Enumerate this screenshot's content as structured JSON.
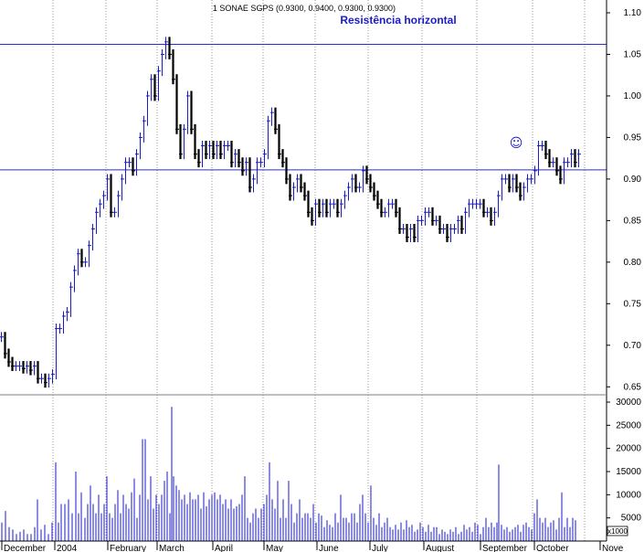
{
  "chart_data": {
    "type": "bar",
    "title": "1 SONAE SGPS (0.9300, 0.9400, 0.9300, 0.9300)",
    "annotation": "Resistência horizontal",
    "annotation_symbol": "☺",
    "price_axis": {
      "ticks": [
        "1.10",
        "1.05",
        "1.00",
        "0.95",
        "0.90",
        "0.85",
        "0.80",
        "0.75",
        "0.70",
        "0.65"
      ],
      "ylim": [
        0.625,
        1.1
      ]
    },
    "volume_axis": {
      "ticks": [
        "30000",
        "25000",
        "20000",
        "15000",
        "10000",
        "5000"
      ],
      "ylim": [
        0,
        30000
      ],
      "unit_label": "x1000"
    },
    "x_labels": [
      "December",
      "2004",
      "February",
      "March",
      "April",
      "May",
      "June",
      "July",
      "August",
      "September",
      "October",
      "Nove"
    ],
    "horizontal_lines": [
      1.062,
      0.911
    ],
    "colors": {
      "up": "#1a1ac8",
      "down": "#000000",
      "hline": "#2b2bd6",
      "volume": "#1a1ac8",
      "grid": "#9a9a9a",
      "annotation": "#1a1ac8"
    },
    "price_series": [
      [
        0,
        0.71
      ],
      [
        4,
        0.69
      ],
      [
        8,
        0.68
      ],
      [
        12,
        0.675
      ],
      [
        16,
        0.675
      ],
      [
        20,
        0.675
      ],
      [
        24,
        0.672
      ],
      [
        28,
        0.675
      ],
      [
        32,
        0.67
      ],
      [
        36,
        0.675
      ],
      [
        40,
        0.66
      ],
      [
        44,
        0.66
      ],
      [
        48,
        0.655
      ],
      [
        52,
        0.66
      ],
      [
        56,
        0.665
      ],
      [
        60,
        0.72
      ],
      [
        64,
        0.72
      ],
      [
        68,
        0.735
      ],
      [
        72,
        0.74
      ],
      [
        76,
        0.77
      ],
      [
        80,
        0.79
      ],
      [
        84,
        0.81
      ],
      [
        88,
        0.8
      ],
      [
        92,
        0.8
      ],
      [
        96,
        0.82
      ],
      [
        100,
        0.84
      ],
      [
        104,
        0.86
      ],
      [
        108,
        0.87
      ],
      [
        112,
        0.88
      ],
      [
        116,
        0.9
      ],
      [
        120,
        0.86
      ],
      [
        124,
        0.86
      ],
      [
        128,
        0.88
      ],
      [
        132,
        0.9
      ],
      [
        136,
        0.92
      ],
      [
        140,
        0.92
      ],
      [
        144,
        0.91
      ],
      [
        148,
        0.93
      ],
      [
        152,
        0.95
      ],
      [
        156,
        0.97
      ],
      [
        160,
        1.0
      ],
      [
        164,
        1.02
      ],
      [
        168,
        1.0
      ],
      [
        172,
        1.03
      ],
      [
        176,
        1.05
      ],
      [
        180,
        1.065
      ],
      [
        184,
        1.05
      ],
      [
        188,
        1.02
      ],
      [
        192,
        0.96
      ],
      [
        196,
        0.93
      ],
      [
        200,
        0.96
      ],
      [
        204,
        1.0
      ],
      [
        208,
        0.96
      ],
      [
        212,
        0.93
      ],
      [
        216,
        0.92
      ],
      [
        220,
        0.94
      ],
      [
        224,
        0.93
      ],
      [
        228,
        0.94
      ],
      [
        232,
        0.93
      ],
      [
        236,
        0.94
      ],
      [
        240,
        0.93
      ],
      [
        244,
        0.94
      ],
      [
        248,
        0.94
      ],
      [
        252,
        0.92
      ],
      [
        256,
        0.93
      ],
      [
        260,
        0.92
      ],
      [
        264,
        0.91
      ],
      [
        268,
        0.92
      ],
      [
        272,
        0.89
      ],
      [
        276,
        0.9
      ],
      [
        280,
        0.92
      ],
      [
        284,
        0.92
      ],
      [
        288,
        0.93
      ],
      [
        292,
        0.97
      ],
      [
        296,
        0.98
      ],
      [
        300,
        0.96
      ],
      [
        304,
        0.93
      ],
      [
        308,
        0.92
      ],
      [
        312,
        0.9
      ],
      [
        316,
        0.88
      ],
      [
        320,
        0.89
      ],
      [
        324,
        0.9
      ],
      [
        328,
        0.89
      ],
      [
        332,
        0.88
      ],
      [
        336,
        0.86
      ],
      [
        340,
        0.85
      ],
      [
        344,
        0.87
      ],
      [
        348,
        0.86
      ],
      [
        352,
        0.87
      ],
      [
        356,
        0.86
      ],
      [
        360,
        0.87
      ],
      [
        364,
        0.87
      ],
      [
        368,
        0.86
      ],
      [
        372,
        0.87
      ],
      [
        376,
        0.88
      ],
      [
        380,
        0.89
      ],
      [
        384,
        0.9
      ],
      [
        388,
        0.89
      ],
      [
        392,
        0.89
      ],
      [
        396,
        0.91
      ],
      [
        400,
        0.9
      ],
      [
        404,
        0.89
      ],
      [
        408,
        0.88
      ],
      [
        412,
        0.87
      ],
      [
        416,
        0.86
      ],
      [
        420,
        0.86
      ],
      [
        424,
        0.87
      ],
      [
        428,
        0.87
      ],
      [
        432,
        0.86
      ],
      [
        436,
        0.84
      ],
      [
        440,
        0.84
      ],
      [
        444,
        0.83
      ],
      [
        448,
        0.84
      ],
      [
        452,
        0.83
      ],
      [
        456,
        0.85
      ],
      [
        460,
        0.85
      ],
      [
        464,
        0.86
      ],
      [
        468,
        0.86
      ],
      [
        472,
        0.85
      ],
      [
        476,
        0.85
      ],
      [
        480,
        0.84
      ],
      [
        484,
        0.84
      ],
      [
        488,
        0.83
      ],
      [
        492,
        0.84
      ],
      [
        496,
        0.84
      ],
      [
        500,
        0.85
      ],
      [
        504,
        0.84
      ],
      [
        508,
        0.86
      ],
      [
        512,
        0.87
      ],
      [
        516,
        0.87
      ],
      [
        520,
        0.87
      ],
      [
        524,
        0.87
      ],
      [
        528,
        0.86
      ],
      [
        532,
        0.86
      ],
      [
        536,
        0.85
      ],
      [
        540,
        0.86
      ],
      [
        544,
        0.88
      ],
      [
        548,
        0.9
      ],
      [
        552,
        0.9
      ],
      [
        556,
        0.89
      ],
      [
        560,
        0.9
      ],
      [
        564,
        0.89
      ],
      [
        568,
        0.88
      ],
      [
        572,
        0.89
      ],
      [
        576,
        0.9
      ],
      [
        580,
        0.9
      ],
      [
        584,
        0.91
      ],
      [
        588,
        0.94
      ],
      [
        592,
        0.94
      ],
      [
        596,
        0.93
      ],
      [
        600,
        0.92
      ],
      [
        604,
        0.92
      ],
      [
        608,
        0.91
      ],
      [
        612,
        0.9
      ],
      [
        616,
        0.92
      ],
      [
        620,
        0.92
      ],
      [
        624,
        0.93
      ],
      [
        628,
        0.92
      ],
      [
        632,
        0.93
      ]
    ],
    "volume_series": [
      [
        2,
        4000
      ],
      [
        6,
        6500
      ],
      [
        10,
        3000
      ],
      [
        14,
        2500
      ],
      [
        18,
        1500
      ],
      [
        22,
        2000
      ],
      [
        26,
        2500
      ],
      [
        30,
        1500
      ],
      [
        34,
        1500
      ],
      [
        38,
        3000
      ],
      [
        41,
        9000
      ],
      [
        45,
        2500
      ],
      [
        49,
        3500
      ],
      [
        53,
        1500
      ],
      [
        57,
        4000
      ],
      [
        61,
        17000
      ],
      [
        64,
        4000
      ],
      [
        67,
        8000
      ],
      [
        71,
        8000
      ],
      [
        75,
        9000
      ],
      [
        79,
        6000
      ],
      [
        83,
        15000
      ],
      [
        86,
        6000
      ],
      [
        89,
        10500
      ],
      [
        93,
        5000
      ],
      [
        96,
        8000
      ],
      [
        99,
        12000
      ],
      [
        102,
        8000
      ],
      [
        105,
        6000
      ],
      [
        108,
        10000
      ],
      [
        111,
        6000
      ],
      [
        114,
        8000
      ],
      [
        117,
        14000
      ],
      [
        120,
        6000
      ],
      [
        123,
        5000
      ],
      [
        126,
        8000
      ],
      [
        129,
        11000
      ],
      [
        132,
        6000
      ],
      [
        135,
        10000
      ],
      [
        138,
        8000
      ],
      [
        141,
        7000
      ],
      [
        144,
        10500
      ],
      [
        147,
        13500
      ],
      [
        150,
        5000
      ],
      [
        153,
        10000
      ],
      [
        156,
        22000
      ],
      [
        159,
        22000
      ],
      [
        162,
        9000
      ],
      [
        165,
        14000
      ],
      [
        168,
        7000
      ],
      [
        171,
        10000
      ],
      [
        174,
        8000
      ],
      [
        177,
        10000
      ],
      [
        180,
        13000
      ],
      [
        183,
        15000
      ],
      [
        186,
        6000
      ],
      [
        188,
        29000
      ],
      [
        190,
        14000
      ],
      [
        193,
        12000
      ],
      [
        196,
        11000
      ],
      [
        199,
        9000
      ],
      [
        202,
        10000
      ],
      [
        205,
        8000
      ],
      [
        208,
        10500
      ],
      [
        211,
        9000
      ],
      [
        214,
        9000
      ],
      [
        217,
        10000
      ],
      [
        220,
        7000
      ],
      [
        223,
        10500
      ],
      [
        226,
        7500
      ],
      [
        229,
        9000
      ],
      [
        232,
        10000
      ],
      [
        235,
        10500
      ],
      [
        238,
        9000
      ],
      [
        241,
        10000
      ],
      [
        244,
        8000
      ],
      [
        247,
        9000
      ],
      [
        250,
        7000
      ],
      [
        253,
        9000
      ],
      [
        256,
        7000
      ],
      [
        259,
        7500
      ],
      [
        262,
        8000
      ],
      [
        265,
        10000
      ],
      [
        268,
        14000
      ],
      [
        271,
        5000
      ],
      [
        274,
        4000
      ],
      [
        277,
        6000
      ],
      [
        280,
        7000
      ],
      [
        283,
        5000
      ],
      [
        286,
        7000
      ],
      [
        289,
        8000
      ],
      [
        292,
        10000
      ],
      [
        295,
        17000
      ],
      [
        298,
        9000
      ],
      [
        301,
        7000
      ],
      [
        304,
        13000
      ],
      [
        307,
        5000
      ],
      [
        310,
        9000
      ],
      [
        313,
        5000
      ],
      [
        316,
        13000
      ],
      [
        319,
        8000
      ],
      [
        322,
        4000
      ],
      [
        325,
        6000
      ],
      [
        328,
        9000
      ],
      [
        331,
        5000
      ],
      [
        334,
        6000
      ],
      [
        337,
        6000
      ],
      [
        340,
        5000
      ],
      [
        343,
        8000
      ],
      [
        346,
        4000
      ],
      [
        349,
        6000
      ],
      [
        352,
        5500
      ],
      [
        355,
        3000
      ],
      [
        358,
        4500
      ],
      [
        361,
        3500
      ],
      [
        364,
        3000
      ],
      [
        367,
        6000
      ],
      [
        370,
        4000
      ],
      [
        373,
        10000
      ],
      [
        376,
        5000
      ],
      [
        379,
        5000
      ],
      [
        382,
        4000
      ],
      [
        385,
        6000
      ],
      [
        388,
        6000
      ],
      [
        391,
        4000
      ],
      [
        394,
        8000
      ],
      [
        397,
        10000
      ],
      [
        400,
        6000
      ],
      [
        403,
        4000
      ],
      [
        406,
        12000
      ],
      [
        409,
        5000
      ],
      [
        412,
        3500
      ],
      [
        415,
        6000
      ],
      [
        418,
        3000
      ],
      [
        421,
        4000
      ],
      [
        424,
        5000
      ],
      [
        427,
        3000
      ],
      [
        430,
        2500
      ],
      [
        433,
        3500
      ],
      [
        436,
        2500
      ],
      [
        439,
        4000
      ],
      [
        442,
        2500
      ],
      [
        445,
        4500
      ],
      [
        448,
        3000
      ],
      [
        451,
        3500
      ],
      [
        454,
        2000
      ],
      [
        457,
        2500
      ],
      [
        460,
        4000
      ],
      [
        463,
        3000
      ],
      [
        466,
        2000
      ],
      [
        469,
        3500
      ],
      [
        472,
        2000
      ],
      [
        475,
        3000
      ],
      [
        478,
        3000
      ],
      [
        481,
        1500
      ],
      [
        484,
        2500
      ],
      [
        487,
        2000
      ],
      [
        490,
        1500
      ],
      [
        493,
        2500
      ],
      [
        496,
        2000
      ],
      [
        499,
        3000
      ],
      [
        502,
        1500
      ],
      [
        505,
        2000
      ],
      [
        508,
        3500
      ],
      [
        511,
        2500
      ],
      [
        514,
        3000
      ],
      [
        517,
        2000
      ],
      [
        520,
        4000
      ],
      [
        523,
        3500
      ],
      [
        526,
        1500
      ],
      [
        529,
        3000
      ],
      [
        532,
        5000
      ],
      [
        535,
        3000
      ],
      [
        538,
        4000
      ],
      [
        541,
        3000
      ],
      [
        544,
        4000
      ],
      [
        546,
        16500
      ],
      [
        549,
        3500
      ],
      [
        552,
        2500
      ],
      [
        555,
        3000
      ],
      [
        558,
        2000
      ],
      [
        561,
        2500
      ],
      [
        564,
        3000
      ],
      [
        567,
        3500
      ],
      [
        570,
        2000
      ],
      [
        573,
        3500
      ],
      [
        576,
        4000
      ],
      [
        579,
        3000
      ],
      [
        582,
        2500
      ],
      [
        585,
        6000
      ],
      [
        588,
        9000
      ],
      [
        591,
        5000
      ],
      [
        594,
        4000
      ],
      [
        597,
        5000
      ],
      [
        600,
        3000
      ],
      [
        603,
        4000
      ],
      [
        606,
        4500
      ],
      [
        609,
        2500
      ],
      [
        612,
        5000
      ],
      [
        615,
        10500
      ],
      [
        618,
        3000
      ],
      [
        621,
        5000
      ],
      [
        624,
        3000
      ],
      [
        627,
        5000
      ],
      [
        630,
        4500
      ]
    ]
  }
}
